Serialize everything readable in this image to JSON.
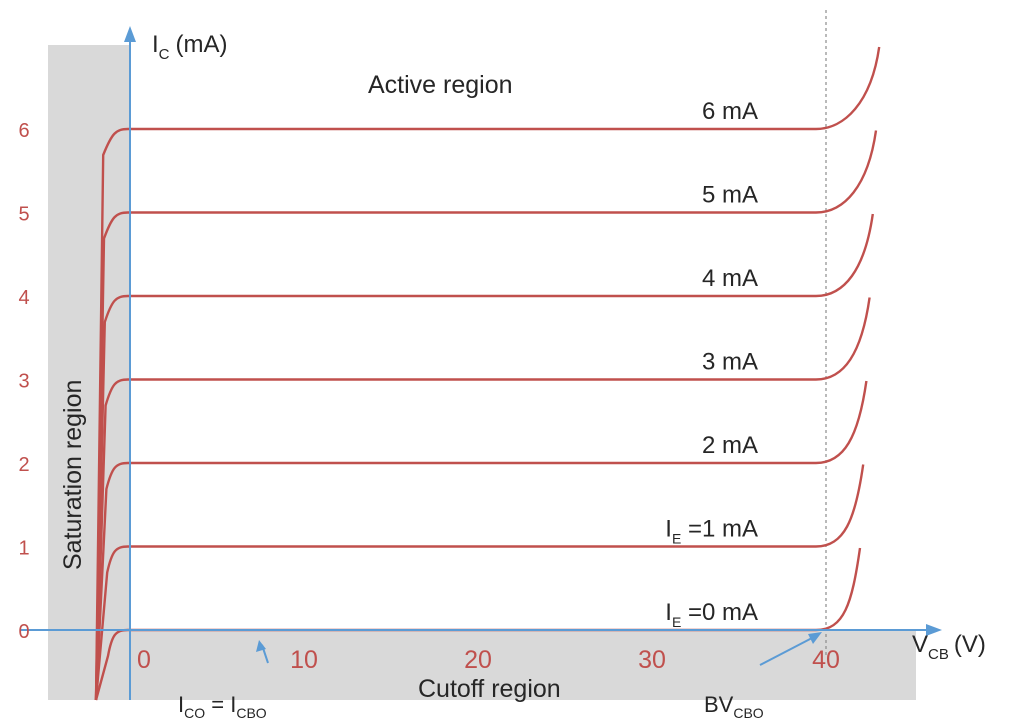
{
  "chart_data": {
    "type": "line",
    "title": "",
    "xlabel": {
      "main": "V",
      "sub": "CB",
      "unit": "(V)"
    },
    "ylabel": {
      "main": "I",
      "sub": "C",
      "unit": "(mA)"
    },
    "xlim": [
      -4,
      44
    ],
    "ylim": [
      -1,
      7
    ],
    "x_ticks": [
      "0",
      "10",
      "20",
      "30",
      "40"
    ],
    "y_ticks": [
      "0",
      "1",
      "2",
      "3",
      "4",
      "5",
      "6"
    ],
    "breakdown_voltage": 40,
    "series": [
      {
        "value": 0,
        "label": {
          "main": "I",
          "sub": "E",
          "rest": " =0 mA"
        }
      },
      {
        "value": 1,
        "label": {
          "main": "I",
          "sub": "E",
          "rest": " =1 mA"
        }
      },
      {
        "value": 2,
        "label": "2 mA"
      },
      {
        "value": 3,
        "label": "3 mA"
      },
      {
        "value": 4,
        "label": "4 mA"
      },
      {
        "value": 5,
        "label": "5 mA"
      },
      {
        "value": 6,
        "label": "6 mA"
      }
    ],
    "regions": {
      "active": "Active region",
      "saturation": "Saturation region",
      "cutoff": "Cutoff region"
    },
    "annotations": {
      "ico": {
        "a_main": "I",
        "a_sub": "CO",
        "eq": " = ",
        "b_main": "I",
        "b_sub": "CBO"
      },
      "bvcbo": {
        "main": "BV",
        "sub": "CBO"
      }
    },
    "colors": {
      "curve": "#c0504d",
      "tick": "#c0504d",
      "axis": "#5b9bd5",
      "region": "#d9d9d9",
      "text": "#262626"
    }
  }
}
